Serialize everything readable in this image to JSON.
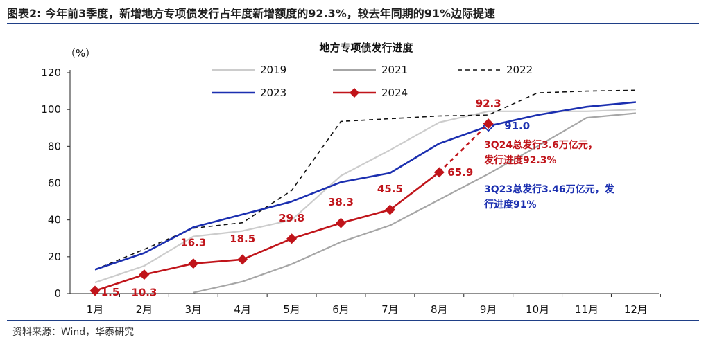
{
  "figure_title": "图表2:  今年前3季度，新增地方专项债发行占年度新增额度的92.3%，较去年同期的91%边际提速",
  "source_note": "资料来源：Wind，华泰研究",
  "colors": {
    "2019": "#cccccc",
    "2021": "#a6a6a6",
    "2022": "#111111",
    "2023": "#1b2fb0",
    "2024": "#c0141a",
    "note_2024": "#c0141a",
    "note_2023": "#1b2fb0",
    "rule": "#1f3f87"
  },
  "chart_data": {
    "type": "line",
    "title": "地方专项债发行进度",
    "ylabel": "（%）",
    "xlabel": "",
    "categories": [
      "1月",
      "2月",
      "3月",
      "4月",
      "5月",
      "6月",
      "7月",
      "8月",
      "9月",
      "10月",
      "11月",
      "12月"
    ],
    "ylim": [
      0,
      120
    ],
    "yticks": [
      0,
      20,
      40,
      60,
      80,
      100,
      120
    ],
    "legend": "top, in two rows",
    "series": [
      {
        "name": "2019",
        "style": "solid",
        "values": [
          6,
          15,
          31,
          34,
          40,
          64,
          78,
          93,
          99,
          99,
          99,
          100
        ]
      },
      {
        "name": "2021",
        "style": "solid",
        "values": [
          null,
          null,
          0.5,
          6.5,
          16,
          28,
          37,
          51,
          65,
          80,
          95.5,
          98
        ]
      },
      {
        "name": "2022",
        "style": "dashed",
        "values": [
          13,
          24,
          35.5,
          38.5,
          56,
          93.5,
          95,
          96.5,
          97,
          109,
          110,
          110.5
        ]
      },
      {
        "name": "2023",
        "style": "solid",
        "values": [
          13,
          22,
          36,
          43,
          50,
          60.5,
          65.5,
          81.5,
          91,
          97,
          101.5,
          104
        ]
      },
      {
        "name": "2024",
        "style": "solid-diamond",
        "values": [
          1.5,
          10.3,
          16.3,
          18.5,
          29.8,
          38.3,
          45.5,
          65.9,
          92.3,
          null,
          null,
          null
        ],
        "dashed_last_segment": true
      }
    ],
    "data_labels": [
      "1.5",
      "10.3",
      "16.3",
      "18.5",
      "29.8",
      "38.3",
      "45.5",
      "65.9",
      "92.3"
    ],
    "label_2023_sep": "91.0",
    "annotations": [
      {
        "line1": "3Q24总发行3.6万亿元，",
        "line2": "发行进度92.3%",
        "series": "2024"
      },
      {
        "line1": "3Q23总发行3.46万亿元，发",
        "line2": "行进度91%",
        "series": "2023"
      }
    ]
  }
}
